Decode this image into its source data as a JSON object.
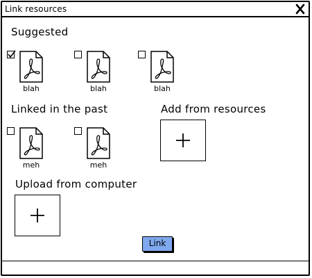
{
  "window": {
    "title": "Link resources",
    "close_icon": "close-x-icon"
  },
  "suggested": {
    "heading": "Suggested",
    "items": [
      {
        "label": "blah",
        "checked": true,
        "icon": "pdf-file-icon"
      },
      {
        "label": "blah",
        "checked": false,
        "icon": "pdf-file-icon"
      },
      {
        "label": "blah",
        "checked": false,
        "icon": "pdf-file-icon"
      }
    ]
  },
  "linked_past": {
    "heading": "Linked in the past",
    "items": [
      {
        "label": "meh",
        "checked": false,
        "icon": "pdf-file-icon"
      },
      {
        "label": "meh",
        "checked": false,
        "icon": "pdf-file-icon"
      }
    ]
  },
  "add_from_resources": {
    "heading": "Add from resources",
    "icon": "plus-icon"
  },
  "upload_from_computer": {
    "heading": "Upload from computer",
    "icon": "plus-icon"
  },
  "actions": {
    "link_label": "Link",
    "link_color": "#7fa8ee"
  }
}
